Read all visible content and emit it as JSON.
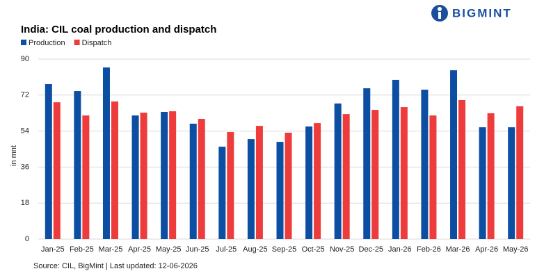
{
  "chart_data": {
    "type": "bar",
    "title": "India: CIL coal production and dispatch",
    "logo": "BIGMINT",
    "ylabel": "in mnt",
    "source": "Source: CIL, BigMint | Last updated: 12-06-2026",
    "categories": [
      "Jan-25",
      "Feb-25",
      "Mar-25",
      "Apr-25",
      "May-25",
      "Jun-25",
      "Jul-25",
      "Aug-25",
      "Sep-25",
      "Oct-25",
      "Nov-25",
      "Dec-25",
      "Jan-26",
      "Feb-26",
      "Mar-26",
      "Apr-26",
      "May-26"
    ],
    "series": [
      {
        "name": "Production",
        "color": "#0b4ea2",
        "values": [
          77.5,
          74.0,
          85.8,
          61.8,
          63.6,
          57.7,
          46.2,
          50.0,
          48.6,
          56.3,
          67.8,
          75.4,
          79.6,
          74.7,
          84.4,
          55.9,
          55.9
        ]
      },
      {
        "name": "Dispatch",
        "color": "#ee3b3b",
        "values": [
          68.4,
          61.8,
          68.8,
          63.2,
          63.9,
          60.1,
          53.5,
          56.6,
          53.2,
          58.0,
          62.5,
          64.6,
          66.0,
          61.8,
          69.5,
          62.9,
          66.4
        ]
      }
    ],
    "ylim": [
      0,
      90
    ],
    "yticks": [
      0,
      18,
      36,
      54,
      72,
      90
    ],
    "grid": true
  }
}
